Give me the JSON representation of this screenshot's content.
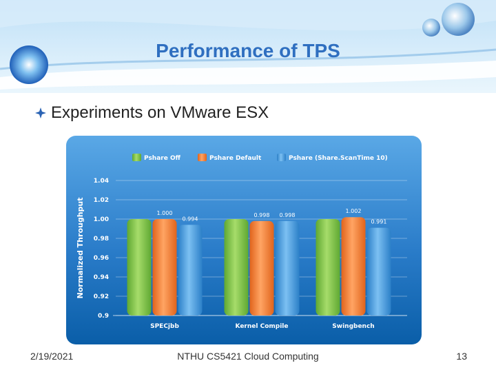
{
  "slide": {
    "title": "Performance of TPS",
    "bullet": "Experiments on VMware ESX"
  },
  "footer": {
    "date": "2/19/2021",
    "course": "NTHU CS5421 Cloud Computing",
    "page": "13"
  },
  "colors": {
    "series": [
      "#7dc043",
      "#f07d33",
      "#3c95d8"
    ],
    "panel_top": "#5aa8e6",
    "panel_bottom": "#0a5ea8",
    "title": "#2f6fc0"
  },
  "icons": {
    "bullet": "diamond-bullet-icon"
  },
  "chart_data": {
    "type": "bar",
    "title": "",
    "xlabel": "",
    "ylabel": "Normalized Throughput",
    "ylim": [
      0.9,
      1.04
    ],
    "yticks": [
      "1.04",
      "1.02",
      "1.00",
      "0.98",
      "0.96",
      "0.94",
      "0.92",
      "0.9"
    ],
    "grid": true,
    "legend": "top",
    "categories": [
      "SPECjbb",
      "Kernel Compile",
      "Swingbench"
    ],
    "series": [
      {
        "name": "Pshare Off",
        "values": [
          1.0,
          1.0,
          1.0
        ],
        "labels": [
          "",
          "",
          ""
        ]
      },
      {
        "name": "Pshare Default",
        "values": [
          1.0,
          0.998,
          1.002
        ],
        "labels": [
          "1.000",
          "0.998",
          "1.002"
        ]
      },
      {
        "name": "Pshare (Share.ScanTime 10)",
        "values": [
          0.994,
          0.998,
          0.991
        ],
        "labels": [
          "0.994",
          "0.998",
          "0.991"
        ]
      }
    ]
  }
}
